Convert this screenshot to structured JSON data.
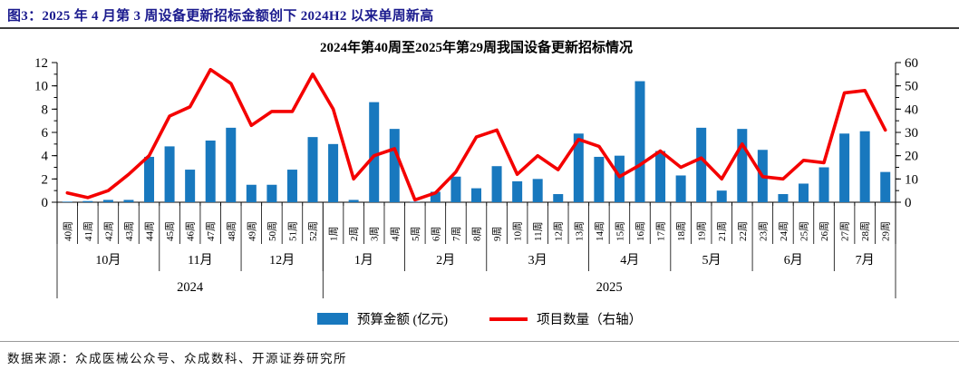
{
  "figure": {
    "title": "图3：2025 年 4 月第 3 周设备更新招标金额创下 2024H2 以来单周新高",
    "source": "数据来源：众成医械公众号、众成数科、开源证券研究所"
  },
  "colors": {
    "title_text": "#1b1b8e",
    "bar": "#1878BE",
    "line": "#F40000"
  },
  "chart_data": {
    "type": "bar+line",
    "title": "2024年第40周至2025年第29周我国设备更新招标情况",
    "categories": [
      "40周",
      "41周",
      "42周",
      "43周",
      "44周",
      "45周",
      "46周",
      "47周",
      "48周",
      "49周",
      "50周",
      "51周",
      "52周",
      "1周",
      "2周",
      "3周",
      "4周",
      "5周",
      "6周",
      "7周",
      "8周",
      "9周",
      "10周",
      "11周",
      "12周",
      "13周",
      "14周",
      "15周",
      "16周",
      "17周",
      "18周",
      "19周",
      "21周",
      "22周",
      "23周",
      "24周",
      "25周",
      "26周",
      "27周",
      "28周",
      "29周"
    ],
    "series": [
      {
        "name": "预算金额 (亿元)",
        "type": "bar",
        "axis": "left",
        "values": [
          0.05,
          0.1,
          0.2,
          0.2,
          3.9,
          4.8,
          2.8,
          5.3,
          6.4,
          1.5,
          1.5,
          2.8,
          5.6,
          5.0,
          0.2,
          8.6,
          6.3,
          0.05,
          0.9,
          2.2,
          1.2,
          3.1,
          1.8,
          2.0,
          0.7,
          5.9,
          3.9,
          4.0,
          10.4,
          4.4,
          2.3,
          6.4,
          1.0,
          6.3,
          4.5,
          0.7,
          1.6,
          3.0,
          5.9,
          6.1,
          2.6
        ]
      },
      {
        "name": "项目数量（右轴）",
        "type": "line",
        "axis": "right",
        "values": [
          4,
          2,
          5,
          12,
          20,
          37,
          41,
          57,
          51,
          33,
          39,
          39,
          55,
          40,
          10,
          20,
          23,
          1,
          4,
          13,
          28,
          31,
          12,
          20,
          14,
          27,
          24,
          11,
          16,
          22,
          15,
          19,
          10,
          25,
          11,
          10,
          18,
          17,
          47,
          48,
          31
        ]
      }
    ],
    "left_axis": {
      "min": 0,
      "max": 12,
      "step": 2,
      "minor_step": 1
    },
    "right_axis": {
      "min": 0,
      "max": 60,
      "step": 10,
      "minor_step": 5
    },
    "month_groups": [
      {
        "label": "10月",
        "count": 5
      },
      {
        "label": "11月",
        "count": 4
      },
      {
        "label": "12月",
        "count": 4
      },
      {
        "label": "1月",
        "count": 4
      },
      {
        "label": "2月",
        "count": 4
      },
      {
        "label": "3月",
        "count": 5
      },
      {
        "label": "4月",
        "count": 4
      },
      {
        "label": "5月",
        "count": 4
      },
      {
        "label": "6月",
        "count": 4
      },
      {
        "label": "7月",
        "count": 3
      }
    ],
    "year_groups": [
      {
        "label": "2024",
        "count": 13
      },
      {
        "label": "2025",
        "count": 28
      }
    ],
    "legend_position": "bottom"
  }
}
